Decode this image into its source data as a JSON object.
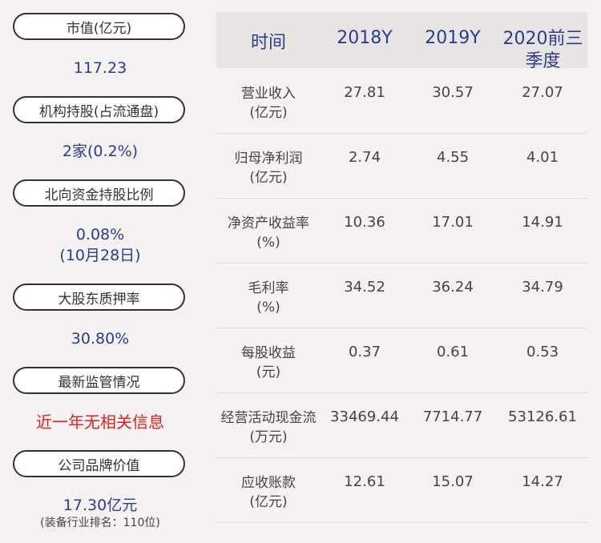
{
  "sidebar": [
    {
      "label": "市值(亿元)",
      "value": "117.23",
      "value_color": "#2a3d8f"
    },
    {
      "label": "机构持股(占流通盘)",
      "value": "2家(0.2%)",
      "value_color": "#2a3d8f"
    },
    {
      "label": "北向资金持股比例",
      "value": "0.08%",
      "value2": "(10月28日)",
      "value_color": "#2a3d8f"
    },
    {
      "label": "大股东质押率",
      "value": "30.80%",
      "value_color": "#2a3d8f"
    },
    {
      "label": "最新监管情况",
      "value": "近一年无相关信息",
      "value_color": "#e02020"
    },
    {
      "label": "公司品牌价值",
      "value": "17.30亿元",
      "note": "(装备行业排名：110位)",
      "value_color": "#2a3d8f"
    }
  ],
  "table": {
    "headers": [
      "时间",
      "2018Y",
      "2019Y",
      "2020前三季度"
    ],
    "rows": [
      {
        "label": [
          "营业收入",
          "(亿元)"
        ],
        "values": [
          "27.81",
          "30.57",
          "27.07"
        ]
      },
      {
        "label": [
          "归母净利润",
          "(亿元)"
        ],
        "values": [
          "2.74",
          "4.55",
          "4.01"
        ]
      },
      {
        "label": [
          "净资产收益率",
          "(%)"
        ],
        "values": [
          "10.36",
          "17.01",
          "14.91"
        ]
      },
      {
        "label": [
          "毛利率",
          "(%)"
        ],
        "values": [
          "34.52",
          "36.24",
          "34.79"
        ]
      },
      {
        "label": [
          "每股收益",
          "(元)"
        ],
        "values": [
          "0.37",
          "0.61",
          "0.53"
        ]
      },
      {
        "label": [
          "经营活动现金流",
          "(万元)"
        ],
        "values": [
          "33469.44",
          "7714.77",
          "53126.61"
        ]
      },
      {
        "label": [
          "应收账款",
          "(亿元)"
        ],
        "values": [
          "12.61",
          "15.07",
          "14.27"
        ]
      }
    ]
  }
}
